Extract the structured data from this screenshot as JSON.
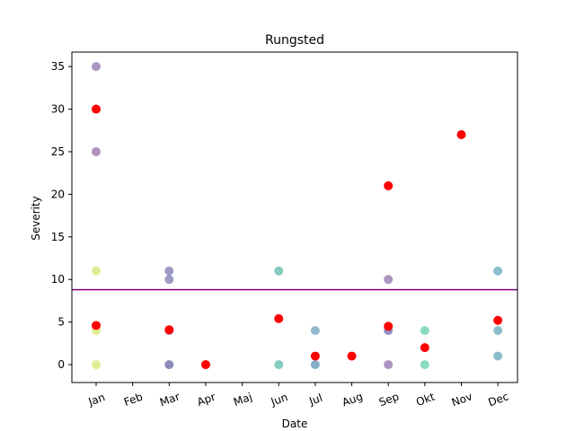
{
  "chart_data": {
    "type": "scatter",
    "title": "Rungsted",
    "xlabel": "Date",
    "ylabel": "Severity",
    "categories": [
      "Jan",
      "Feb",
      "Mar",
      "Apr",
      "Maj",
      "Jun",
      "Jul",
      "Aug",
      "Sep",
      "Okt",
      "Nov",
      "Dec"
    ],
    "yticks": [
      0,
      5,
      10,
      15,
      20,
      25,
      30,
      35
    ],
    "ylim": [
      -2.1,
      36.7
    ],
    "grid": false,
    "mean_line": {
      "value": 8.8,
      "color": "#800080"
    },
    "series": [
      {
        "color": "mixed",
        "points": [
          {
            "x": "Jan",
            "y": 35,
            "color": "#6a3d8a"
          },
          {
            "x": "Jan",
            "y": 25,
            "color": "#6a3d8a"
          },
          {
            "x": "Jan",
            "y": 11,
            "color": "#c8df38"
          },
          {
            "x": "Jan",
            "y": 4,
            "color": "#c8df38"
          },
          {
            "x": "Jan",
            "y": 0,
            "color": "#c8df38"
          },
          {
            "x": "Mar",
            "y": 11,
            "color": "#4d4a98"
          },
          {
            "x": "Mar",
            "y": 10,
            "color": "#4d4a98"
          },
          {
            "x": "Mar",
            "y": 4,
            "color": "#4d4a98"
          },
          {
            "x": "Mar",
            "y": 0,
            "color": "#2b2a7c"
          },
          {
            "x": "Jun",
            "y": 11,
            "color": "#22a08a"
          },
          {
            "x": "Jun",
            "y": 0,
            "color": "#22a08a"
          },
          {
            "x": "Jul",
            "y": 4,
            "color": "#3a7ba0"
          },
          {
            "x": "Jul",
            "y": 0,
            "color": "#1f6f9a"
          },
          {
            "x": "Sep",
            "y": 10,
            "color": "#6a3d8a"
          },
          {
            "x": "Sep",
            "y": 4,
            "color": "#3b2f99"
          },
          {
            "x": "Sep",
            "y": 0,
            "color": "#6a3d8a"
          },
          {
            "x": "Okt",
            "y": 4,
            "color": "#2cc088"
          },
          {
            "x": "Okt",
            "y": 0,
            "color": "#2cc088"
          },
          {
            "x": "Dec",
            "y": 11,
            "color": "#2b88a0"
          },
          {
            "x": "Dec",
            "y": 4,
            "color": "#2b88a0"
          },
          {
            "x": "Dec",
            "y": 1,
            "color": "#2b88a0"
          }
        ]
      },
      {
        "color": "#ff0000",
        "points": [
          {
            "x": "Jan",
            "y": 30
          },
          {
            "x": "Jan",
            "y": 4.6
          },
          {
            "x": "Mar",
            "y": 4.1
          },
          {
            "x": "Apr",
            "y": 0
          },
          {
            "x": "Jun",
            "y": 5.4
          },
          {
            "x": "Jul",
            "y": 1
          },
          {
            "x": "Aug",
            "y": 1
          },
          {
            "x": "Sep",
            "y": 21
          },
          {
            "x": "Sep",
            "y": 4.5
          },
          {
            "x": "Okt",
            "y": 2
          },
          {
            "x": "Nov",
            "y": 27
          },
          {
            "x": "Dec",
            "y": 5.2
          }
        ]
      }
    ]
  }
}
